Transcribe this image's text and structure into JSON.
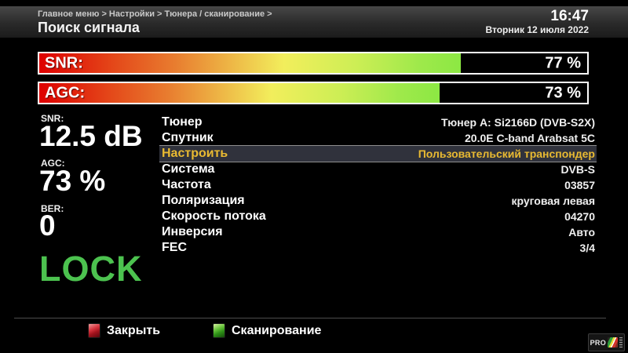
{
  "header": {
    "breadcrumb": "Главное меню > Настройки > Тюнера / сканирование >",
    "title": "Поиск сигнала",
    "time": "16:47",
    "date": "Вторник 12 июля 2022"
  },
  "bars": [
    {
      "label": "SNR:",
      "percent": 77,
      "display": "77 %"
    },
    {
      "label": "AGC:",
      "percent": 73,
      "display": "73 %"
    }
  ],
  "signal": {
    "snr_label": "SNR:",
    "snr_value": "12.5 dB",
    "agc_label": "AGC:",
    "agc_value": "73 %",
    "ber_label": "BER:",
    "ber_value": "0",
    "lock_status": "LOCK"
  },
  "table": {
    "rows": [
      {
        "label": "Тюнер",
        "value": "Тюнер A: Si2166D (DVB-S2X)",
        "highlighted": false
      },
      {
        "label": "Спутник",
        "value": "20.0E C-band Arabsat 5C",
        "highlighted": false
      },
      {
        "label": "Настроить",
        "value": "Пользовательский транспондер",
        "highlighted": true
      },
      {
        "label": "Система",
        "value": "DVB-S",
        "highlighted": false
      },
      {
        "label": "Частота",
        "value": "03857",
        "highlighted": false
      },
      {
        "label": "Поляризация",
        "value": "круговая левая",
        "highlighted": false
      },
      {
        "label": "Скорость потока",
        "value": "04270",
        "highlighted": false
      },
      {
        "label": "Инверсия",
        "value": "Авто",
        "highlighted": false
      },
      {
        "label": "FEC",
        "value": "3/4",
        "highlighted": false
      }
    ]
  },
  "footer": {
    "buttons": [
      {
        "key": "red",
        "label": "Закрыть"
      },
      {
        "key": "green",
        "label": "Сканирование"
      }
    ]
  },
  "watermark": {
    "text": "PRO"
  },
  "colors": {
    "highlight_text": "#e9ba32",
    "highlight_bg": "#30323c",
    "lock_green": "#4cc24f",
    "bar_red": "#de0000",
    "bar_green": "#8ce843",
    "key_red": "#d8353f",
    "key_green": "#66c23a"
  }
}
